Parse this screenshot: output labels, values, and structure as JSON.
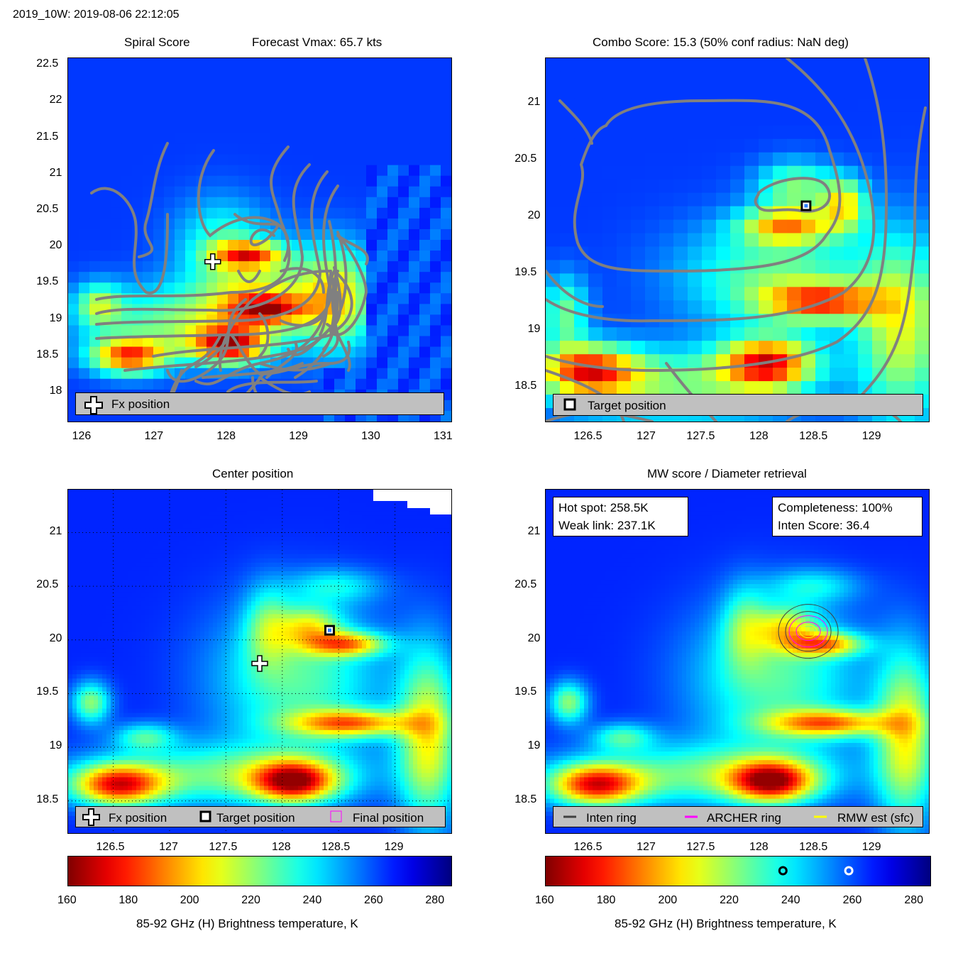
{
  "header": {
    "title": "2019_10W: 2019-08-06 22:12:05"
  },
  "panels": {
    "spiral": {
      "title_left": "Spiral Score",
      "title_right": "Forecast Vmax: 65.7 kts",
      "legend": {
        "fx": "Fx position"
      },
      "x_ticks": [
        "126",
        "127",
        "128",
        "129",
        "130",
        "131"
      ],
      "y_ticks": [
        "22.5",
        "22",
        "21.5",
        "21",
        "20.5",
        "20",
        "19.5",
        "19",
        "18.5",
        "18"
      ]
    },
    "combo": {
      "title": "Combo Score: 15.3  (50% conf radius: NaN deg)",
      "legend": {
        "target": "Target position"
      },
      "x_ticks": [
        "126.5",
        "127",
        "127.5",
        "128",
        "128.5",
        "129"
      ],
      "y_ticks": [
        "21",
        "20.5",
        "20",
        "19.5",
        "19",
        "18.5"
      ]
    },
    "center": {
      "title": "Center position",
      "legend": {
        "fx": "Fx position",
        "target": "Target position",
        "final": "Final position"
      },
      "x_ticks": [
        "126.5",
        "127",
        "127.5",
        "128",
        "128.5",
        "129"
      ],
      "y_ticks": [
        "21",
        "20.5",
        "20",
        "19.5",
        "19",
        "18.5"
      ]
    },
    "mw": {
      "title": "MW score / Diameter retrieval",
      "info_left": {
        "hot_spot": "Hot spot: 258.5K",
        "weak_link": "Weak link: 237.1K"
      },
      "info_right": {
        "completeness": "Completeness: 100%",
        "inten_score": "Inten Score: 36.4"
      },
      "legend": {
        "inten": "Inten ring",
        "archer": "ARCHER ring",
        "rmw": "RMW est (sfc)"
      },
      "x_ticks": [
        "126.5",
        "127",
        "127.5",
        "128",
        "128.5",
        "129"
      ],
      "y_ticks": [
        "21",
        "20.5",
        "20",
        "19.5",
        "19",
        "18.5"
      ]
    }
  },
  "colorbar": {
    "ticks": [
      "160",
      "180",
      "200",
      "220",
      "240",
      "260",
      "280"
    ],
    "label": "85-92 GHz (H) Brightness temperature, K"
  },
  "colors": {
    "legend_bg": "#c0c0c0",
    "contour": "#808080",
    "archer": "#ff00ff",
    "rmw": "#ffff00",
    "inten": "#404040"
  },
  "chart_data": [
    {
      "type": "heatmap",
      "title": "Spiral Score",
      "subtitle": "Forecast Vmax: 65.7 kts",
      "xlim": [
        125.8,
        131.1
      ],
      "ylim": [
        17.6,
        22.6
      ],
      "annotations": [
        {
          "label": "Fx position",
          "x": 127.8,
          "y": 19.8
        }
      ]
    },
    {
      "type": "heatmap",
      "title": "Combo Score: 15.3  (50% conf radius: NaN deg)",
      "xlim": [
        126.1,
        129.5
      ],
      "ylim": [
        18.2,
        21.4
      ],
      "annotations": [
        {
          "label": "Target position",
          "x": 128.41,
          "y": 20.1
        }
      ]
    },
    {
      "type": "heatmap",
      "title": "Center position",
      "xlim": [
        126.1,
        129.5
      ],
      "ylim": [
        18.2,
        21.4
      ],
      "grid": true,
      "annotations": [
        {
          "label": "Fx position",
          "x": 127.8,
          "y": 19.78
        },
        {
          "label": "Target position",
          "x": 128.42,
          "y": 20.09
        }
      ]
    },
    {
      "type": "heatmap",
      "title": "MW score / Diameter retrieval",
      "xlim": [
        126.1,
        129.5
      ],
      "ylim": [
        18.2,
        21.4
      ],
      "stats": {
        "hot_spot_K": 258.5,
        "weak_link_K": 237.1,
        "completeness_pct": 100,
        "inten_score": 36.4
      },
      "rings": [
        "Inten ring",
        "ARCHER ring",
        "RMW est (sfc)"
      ]
    }
  ],
  "colorbar_data": {
    "range": [
      160,
      285
    ],
    "markers": [
      {
        "value": 237.1,
        "color": "#000000"
      },
      {
        "value": 258.5,
        "color": "#ffffff"
      }
    ]
  }
}
